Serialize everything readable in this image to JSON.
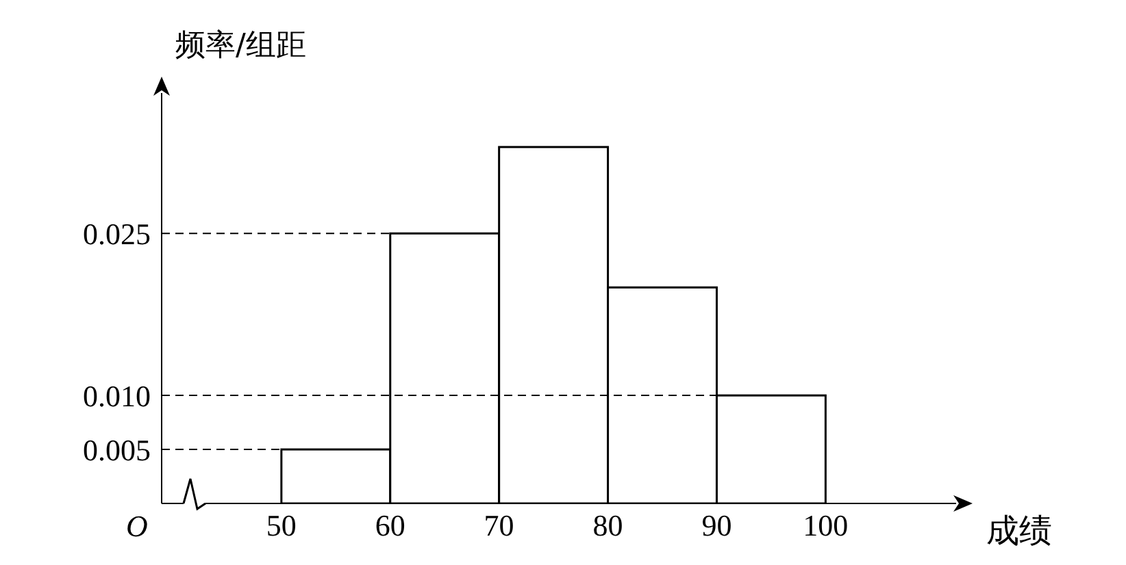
{
  "chart_data": {
    "type": "histogram",
    "ylabel": "频率/组距",
    "xlabel": "成绩",
    "bins": [
      50,
      60,
      70,
      80,
      90,
      100
    ],
    "values": [
      0.005,
      0.025,
      0.033,
      0.02,
      0.01
    ],
    "color": "#ffffff",
    "xlim": [
      39,
      112
    ],
    "xticks": [
      50,
      60,
      70,
      80,
      90,
      100
    ],
    "ylim": [
      0,
      0.038
    ],
    "yticks": [
      {
        "value": 0.005,
        "label": "0.005"
      },
      {
        "value": 0.01,
        "label": "0.010"
      },
      {
        "value": 0.025,
        "label": "0.025"
      }
    ],
    "ref_lines": [
      {
        "axis": "y",
        "value": 0.005,
        "line_style": "dashed",
        "color": "#000000"
      },
      {
        "axis": "y",
        "value": 0.01,
        "line_style": "dashed",
        "color": "#000000"
      },
      {
        "axis": "y",
        "value": 0.025,
        "line_style": "dashed",
        "color": "#000000"
      }
    ],
    "annotations": [
      "O"
    ],
    "grid": false,
    "legend": false
  }
}
